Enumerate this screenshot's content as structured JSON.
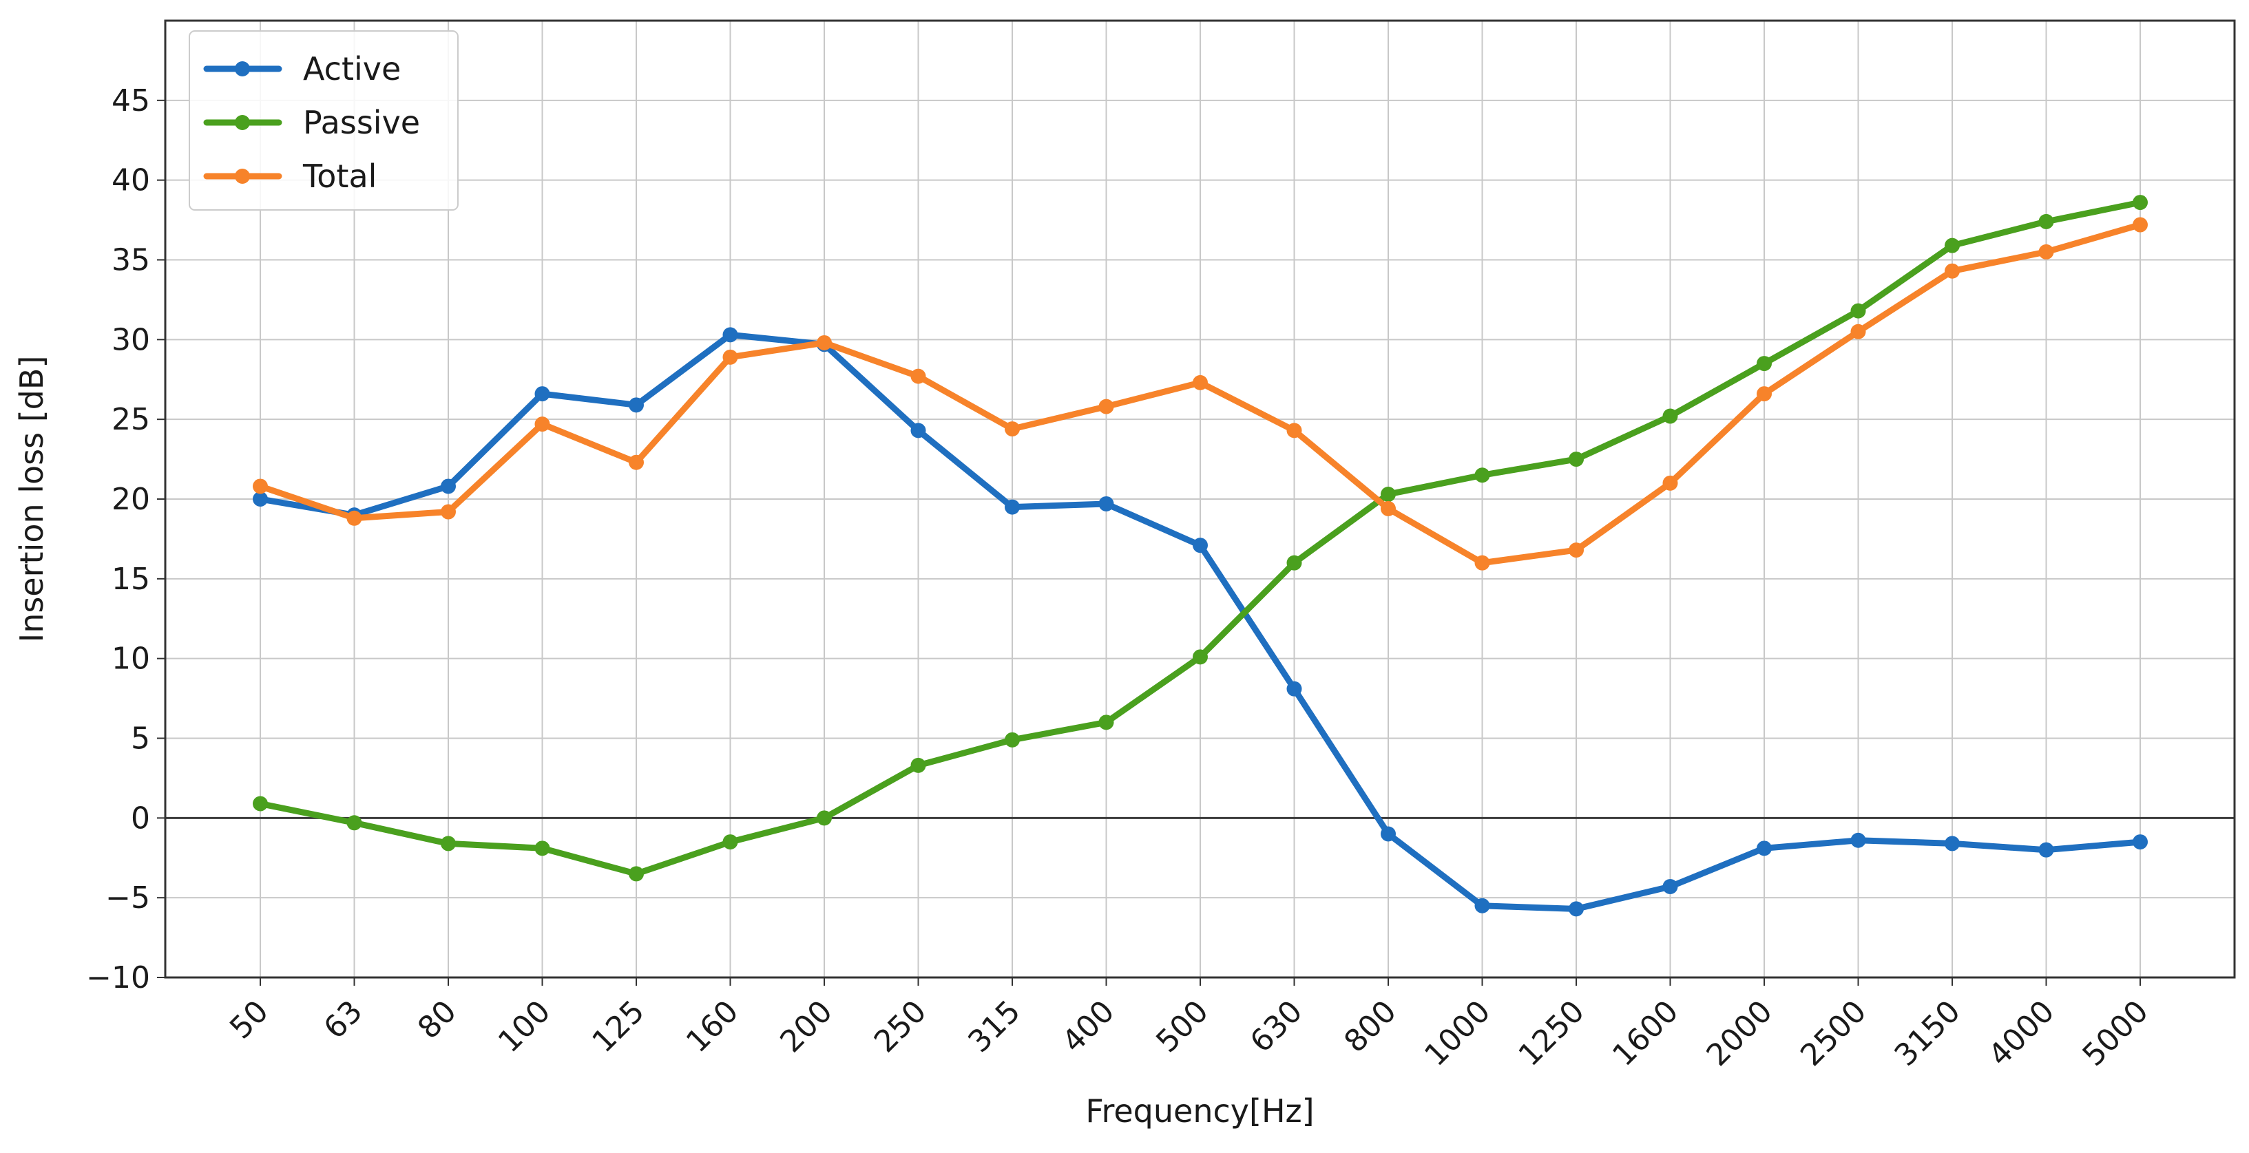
{
  "chart_data": {
    "type": "line",
    "title": "",
    "xlabel": "Frequency[Hz]",
    "ylabel": "Insertion loss [dB]",
    "categories": [
      "50",
      "63",
      "80",
      "100",
      "125",
      "160",
      "200",
      "250",
      "315",
      "400",
      "500",
      "630",
      "800",
      "1000",
      "1250",
      "1600",
      "2000",
      "2500",
      "3150",
      "4000",
      "5000"
    ],
    "ylim": [
      -10,
      50
    ],
    "yticks": [
      -10,
      -5,
      0,
      5,
      10,
      15,
      20,
      25,
      30,
      35,
      40,
      45
    ],
    "ytick_labels": [
      "−10",
      "−5",
      "0",
      "5",
      "10",
      "15",
      "20",
      "25",
      "30",
      "35",
      "40",
      "45"
    ],
    "grid": true,
    "zero_line": true,
    "legend_position": "upper-left",
    "series": [
      {
        "name": "Active",
        "color": "#1f6fc0",
        "values": [
          20.0,
          19.0,
          20.8,
          26.6,
          25.9,
          30.3,
          29.7,
          24.3,
          19.5,
          19.7,
          17.1,
          8.1,
          -1.0,
          -5.5,
          -5.7,
          -4.3,
          -1.9,
          -1.4,
          -1.6,
          -2.0,
          -1.5
        ]
      },
      {
        "name": "Passive",
        "color": "#4aa01e",
        "values": [
          0.9,
          -0.3,
          -1.6,
          -1.9,
          -3.5,
          -1.5,
          0.0,
          3.3,
          4.9,
          6.0,
          10.1,
          16.0,
          20.3,
          21.5,
          22.5,
          25.2,
          28.5,
          31.8,
          35.9,
          37.4,
          38.6
        ]
      },
      {
        "name": "Total",
        "color": "#f7832a",
        "values": [
          20.8,
          18.8,
          19.2,
          24.7,
          22.3,
          28.9,
          29.8,
          27.7,
          24.4,
          25.8,
          27.3,
          24.3,
          19.4,
          16.0,
          16.8,
          21.0,
          26.6,
          30.5,
          34.3,
          35.5,
          37.2
        ]
      }
    ]
  }
}
